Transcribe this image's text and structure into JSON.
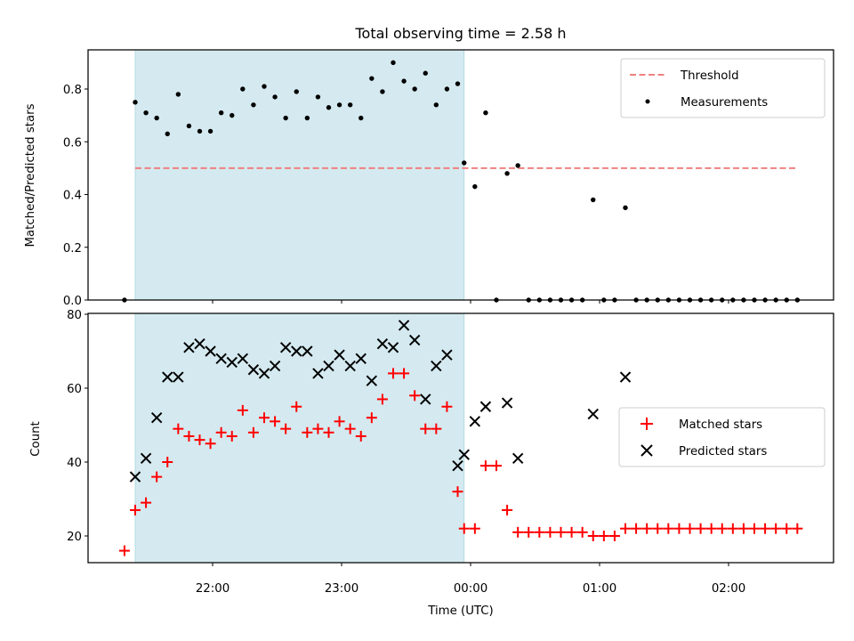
{
  "title": "Total observing time = 2.58 h",
  "chart_data": [
    {
      "type": "scatter",
      "ylabel": "Matched/Predicted stars",
      "xlabel": "",
      "ylim": [
        0,
        0.95
      ],
      "yticks": [
        "0.0",
        "0.2",
        "0.4",
        "0.6",
        "0.8"
      ],
      "grid": false,
      "legend_placement": "top-right",
      "shaded_interval": [
        "21:24",
        "23:57"
      ],
      "shade_color": "#d4eaf0",
      "threshold": {
        "name": "Threshold",
        "value": 0.5,
        "x_range": [
          "21:24",
          "02:32"
        ],
        "color": "#f08080"
      },
      "series": [
        {
          "name": "Measurements",
          "color": "#000000",
          "points": [
            [
              "21:19",
              0.0
            ],
            [
              "21:24",
              0.75
            ],
            [
              "21:29",
              0.71
            ],
            [
              "21:34",
              0.69
            ],
            [
              "21:39",
              0.63
            ],
            [
              "21:44",
              0.78
            ],
            [
              "21:49",
              0.66
            ],
            [
              "21:54",
              0.64
            ],
            [
              "21:59",
              0.64
            ],
            [
              "22:04",
              0.71
            ],
            [
              "22:09",
              0.7
            ],
            [
              "22:14",
              0.8
            ],
            [
              "22:19",
              0.74
            ],
            [
              "22:24",
              0.81
            ],
            [
              "22:29",
              0.77
            ],
            [
              "22:34",
              0.69
            ],
            [
              "22:39",
              0.79
            ],
            [
              "22:44",
              0.69
            ],
            [
              "22:49",
              0.77
            ],
            [
              "22:54",
              0.73
            ],
            [
              "22:59",
              0.74
            ],
            [
              "23:04",
              0.74
            ],
            [
              "23:09",
              0.69
            ],
            [
              "23:14",
              0.84
            ],
            [
              "23:19",
              0.79
            ],
            [
              "23:24",
              0.9
            ],
            [
              "23:29",
              0.83
            ],
            [
              "23:34",
              0.8
            ],
            [
              "23:39",
              0.86
            ],
            [
              "23:44",
              0.74
            ],
            [
              "23:49",
              0.8
            ],
            [
              "23:54",
              0.82
            ],
            [
              "23:57",
              0.52
            ],
            [
              "00:02",
              0.43
            ],
            [
              "00:07",
              0.71
            ],
            [
              "00:12",
              0.0
            ],
            [
              "00:17",
              0.48
            ],
            [
              "00:22",
              0.51
            ],
            [
              "00:27",
              0.0
            ],
            [
              "00:32",
              0.0
            ],
            [
              "00:37",
              0.0
            ],
            [
              "00:42",
              0.0
            ],
            [
              "00:47",
              0.0
            ],
            [
              "00:52",
              0.0
            ],
            [
              "00:57",
              0.38
            ],
            [
              "01:02",
              0.0
            ],
            [
              "01:07",
              0.0
            ],
            [
              "01:12",
              0.35
            ],
            [
              "01:17",
              0.0
            ],
            [
              "01:22",
              0.0
            ],
            [
              "01:27",
              0.0
            ],
            [
              "01:32",
              0.0
            ],
            [
              "01:37",
              0.0
            ],
            [
              "01:42",
              0.0
            ],
            [
              "01:47",
              0.0
            ],
            [
              "01:52",
              0.0
            ],
            [
              "01:57",
              0.0
            ],
            [
              "02:02",
              0.0
            ],
            [
              "02:07",
              0.0
            ],
            [
              "02:12",
              0.0
            ],
            [
              "02:17",
              0.0
            ],
            [
              "02:22",
              0.0
            ],
            [
              "02:27",
              0.0
            ],
            [
              "02:32",
              0.0
            ]
          ]
        }
      ]
    },
    {
      "type": "scatter",
      "ylabel": "Count",
      "xlabel": "Time (UTC)",
      "ylim": [
        13,
        80
      ],
      "yticks": [
        "20",
        "40",
        "60",
        "80"
      ],
      "xticks": [
        "22:00",
        "23:00",
        "00:00",
        "01:00",
        "02:00"
      ],
      "grid": false,
      "legend_placement": "center-right",
      "shaded_interval": [
        "21:24",
        "23:57"
      ],
      "shade_color": "#d4eaf0",
      "series": [
        {
          "name": "Matched stars",
          "color": "#ff0000",
          "marker": "plus",
          "points": [
            [
              "21:19",
              16
            ],
            [
              "21:24",
              27
            ],
            [
              "21:29",
              29
            ],
            [
              "21:34",
              36
            ],
            [
              "21:39",
              40
            ],
            [
              "21:44",
              49
            ],
            [
              "21:49",
              47
            ],
            [
              "21:54",
              46
            ],
            [
              "21:59",
              45
            ],
            [
              "22:04",
              48
            ],
            [
              "22:09",
              47
            ],
            [
              "22:14",
              54
            ],
            [
              "22:19",
              48
            ],
            [
              "22:24",
              52
            ],
            [
              "22:29",
              51
            ],
            [
              "22:34",
              49
            ],
            [
              "22:39",
              55
            ],
            [
              "22:44",
              48
            ],
            [
              "22:49",
              49
            ],
            [
              "22:54",
              48
            ],
            [
              "22:59",
              51
            ],
            [
              "23:04",
              49
            ],
            [
              "23:09",
              47
            ],
            [
              "23:14",
              52
            ],
            [
              "23:19",
              57
            ],
            [
              "23:24",
              64
            ],
            [
              "23:29",
              64
            ],
            [
              "23:34",
              58
            ],
            [
              "23:39",
              49
            ],
            [
              "23:44",
              49
            ],
            [
              "23:49",
              55
            ],
            [
              "23:54",
              32
            ],
            [
              "23:57",
              22
            ],
            [
              "00:02",
              22
            ],
            [
              "00:07",
              39
            ],
            [
              "00:12",
              39
            ],
            [
              "00:17",
              27
            ],
            [
              "00:22",
              21
            ],
            [
              "00:27",
              21
            ],
            [
              "00:32",
              21
            ],
            [
              "00:37",
              21
            ],
            [
              "00:42",
              21
            ],
            [
              "00:47",
              21
            ],
            [
              "00:52",
              21
            ],
            [
              "00:57",
              20
            ],
            [
              "01:02",
              20
            ],
            [
              "01:07",
              20
            ],
            [
              "01:12",
              22
            ],
            [
              "01:17",
              22
            ],
            [
              "01:22",
              22
            ],
            [
              "01:27",
              22
            ],
            [
              "01:32",
              22
            ],
            [
              "01:37",
              22
            ],
            [
              "01:42",
              22
            ],
            [
              "01:47",
              22
            ],
            [
              "01:52",
              22
            ],
            [
              "01:57",
              22
            ],
            [
              "02:02",
              22
            ],
            [
              "02:07",
              22
            ],
            [
              "02:12",
              22
            ],
            [
              "02:17",
              22
            ],
            [
              "02:22",
              22
            ],
            [
              "02:27",
              22
            ],
            [
              "02:32",
              22
            ]
          ]
        },
        {
          "name": "Predicted stars",
          "color": "#000000",
          "marker": "x",
          "points": [
            [
              "21:24",
              36
            ],
            [
              "21:29",
              41
            ],
            [
              "21:34",
              52
            ],
            [
              "21:39",
              63
            ],
            [
              "21:44",
              63
            ],
            [
              "21:49",
              71
            ],
            [
              "21:54",
              72
            ],
            [
              "21:59",
              70
            ],
            [
              "22:04",
              68
            ],
            [
              "22:09",
              67
            ],
            [
              "22:14",
              68
            ],
            [
              "22:19",
              65
            ],
            [
              "22:24",
              64
            ],
            [
              "22:29",
              66
            ],
            [
              "22:34",
              71
            ],
            [
              "22:39",
              70
            ],
            [
              "22:44",
              70
            ],
            [
              "22:49",
              64
            ],
            [
              "22:54",
              66
            ],
            [
              "22:59",
              69
            ],
            [
              "23:04",
              66
            ],
            [
              "23:09",
              68
            ],
            [
              "23:14",
              62
            ],
            [
              "23:19",
              72
            ],
            [
              "23:24",
              71
            ],
            [
              "23:29",
              77
            ],
            [
              "23:34",
              73
            ],
            [
              "23:39",
              57
            ],
            [
              "23:44",
              66
            ],
            [
              "23:49",
              69
            ],
            [
              "23:54",
              39
            ],
            [
              "23:57",
              42
            ],
            [
              "00:02",
              51
            ],
            [
              "00:07",
              55
            ],
            [
              "00:17",
              56
            ],
            [
              "00:22",
              41
            ],
            [
              "00:57",
              53
            ],
            [
              "01:12",
              63
            ]
          ]
        }
      ]
    }
  ]
}
